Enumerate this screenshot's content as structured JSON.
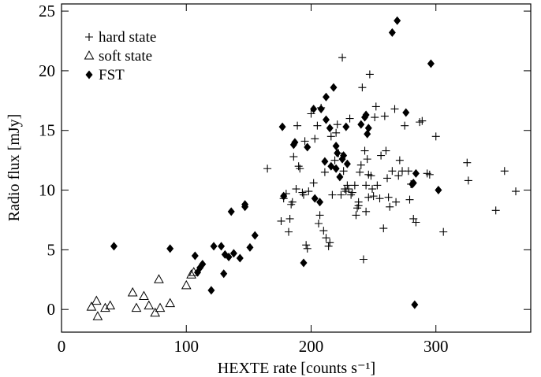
{
  "chart_data": {
    "type": "scatter",
    "x_label": "HEXTE rate [counts s⁻¹]",
    "y_label": "Radio flux [mJy]",
    "xlim": [
      0,
      376
    ],
    "ylim": [
      -1.9,
      25.6
    ],
    "xticks": [
      0,
      100,
      200,
      300
    ],
    "yticks": [
      0,
      5,
      10,
      15,
      20,
      25
    ],
    "legend": "upper left",
    "series": [
      {
        "name": "hard state",
        "color": "#000000",
        "marker": "plus",
        "x": [
          165,
          176,
          178,
          180,
          182,
          183,
          184,
          185,
          186,
          188,
          189,
          190,
          191,
          193,
          194,
          195,
          196,
          197,
          198,
          200,
          202,
          203,
          205,
          206,
          207,
          208,
          210,
          211,
          212,
          214,
          215,
          216,
          217,
          219,
          220,
          221,
          222,
          224,
          225,
          226,
          227,
          228,
          229,
          230,
          231,
          232,
          233,
          235,
          236,
          237,
          238,
          239,
          240,
          241,
          242,
          243,
          244,
          245,
          246,
          247,
          248,
          249,
          250,
          251,
          252,
          253,
          255,
          256,
          258,
          259,
          260,
          261,
          262,
          263,
          265,
          267,
          268,
          270,
          271,
          273,
          275,
          278,
          279,
          280,
          282,
          284,
          287,
          289,
          293,
          295,
          300,
          306,
          325,
          326,
          348,
          355,
          364,
          244,
          238,
          246
        ],
        "values": [
          11.8,
          7.4,
          9.3,
          9.7,
          6.5,
          7.6,
          8.8,
          9.0,
          12.8,
          10.1,
          15.4,
          12.0,
          11.8,
          9.8,
          9.6,
          14.1,
          5.4,
          5.1,
          9.9,
          16.4,
          10.6,
          14.3,
          15.4,
          7.2,
          7.9,
          16.9,
          6.6,
          11.5,
          6.0,
          5.3,
          5.6,
          14.5,
          9.6,
          12.5,
          14.8,
          15.5,
          13.1,
          9.6,
          21.1,
          11.6,
          10.1,
          9.9,
          10.4,
          10.1,
          16.0,
          9.6,
          9.8,
          10.4,
          7.9,
          8.5,
          8.7,
          11.5,
          12.1,
          18.6,
          4.2,
          13.3,
          10.4,
          12.6,
          9.4,
          19.7,
          11.2,
          10.1,
          9.5,
          16.1,
          17.0,
          10.4,
          9.3,
          12.9,
          6.8,
          16.2,
          13.3,
          11.0,
          9.4,
          8.6,
          11.6,
          16.8,
          9.0,
          11.2,
          12.5,
          11.6,
          15.4,
          11.6,
          9.2,
          10.5,
          7.6,
          7.3,
          15.7,
          15.8,
          11.4,
          11.3,
          14.5,
          6.5,
          12.3,
          10.8,
          8.3,
          11.6,
          9.9,
          8.2,
          9.0,
          11.3
        ]
      },
      {
        "name": "soft state",
        "color": "#000000",
        "marker": "triangle",
        "x": [
          24,
          28,
          29,
          35,
          39,
          57,
          60,
          66,
          70,
          75,
          78,
          79,
          87,
          100,
          104,
          106
        ],
        "values": [
          0.2,
          0.7,
          -0.6,
          0.1,
          0.3,
          1.4,
          0.1,
          1.1,
          0.3,
          -0.3,
          2.5,
          0.1,
          0.5,
          2.0,
          2.9,
          3.1
        ]
      },
      {
        "name": "FST",
        "color": "#000000",
        "marker": "diamond",
        "x": [
          42,
          87,
          107,
          109,
          111,
          113,
          120,
          122,
          128,
          130,
          131,
          134,
          136,
          138,
          143,
          147,
          147,
          151,
          155,
          177,
          178,
          186,
          187,
          194,
          197,
          202,
          203,
          207,
          208,
          211,
          212,
          212,
          215,
          216,
          218,
          220,
          221,
          223,
          225,
          226,
          228,
          240,
          243,
          244,
          245,
          246,
          265,
          269,
          276,
          281,
          282,
          283,
          284,
          296,
          302,
          229,
          220
        ],
        "values": [
          5.3,
          5.1,
          4.5,
          3.1,
          3.5,
          3.8,
          1.6,
          5.3,
          5.3,
          3.0,
          4.6,
          4.4,
          8.2,
          4.7,
          4.3,
          8.6,
          8.8,
          5.2,
          6.2,
          15.3,
          9.5,
          13.8,
          14.0,
          3.9,
          13.6,
          16.8,
          9.3,
          9.0,
          16.8,
          12.4,
          15.9,
          17.8,
          15.2,
          12.0,
          18.6,
          13.7,
          13.1,
          11.1,
          12.6,
          12.9,
          15.3,
          15.5,
          16.1,
          16.3,
          14.7,
          15.2,
          23.2,
          24.2,
          16.5,
          10.5,
          10.6,
          0.4,
          11.4,
          20.6,
          10.0,
          12.2,
          11.8
        ]
      }
    ]
  }
}
